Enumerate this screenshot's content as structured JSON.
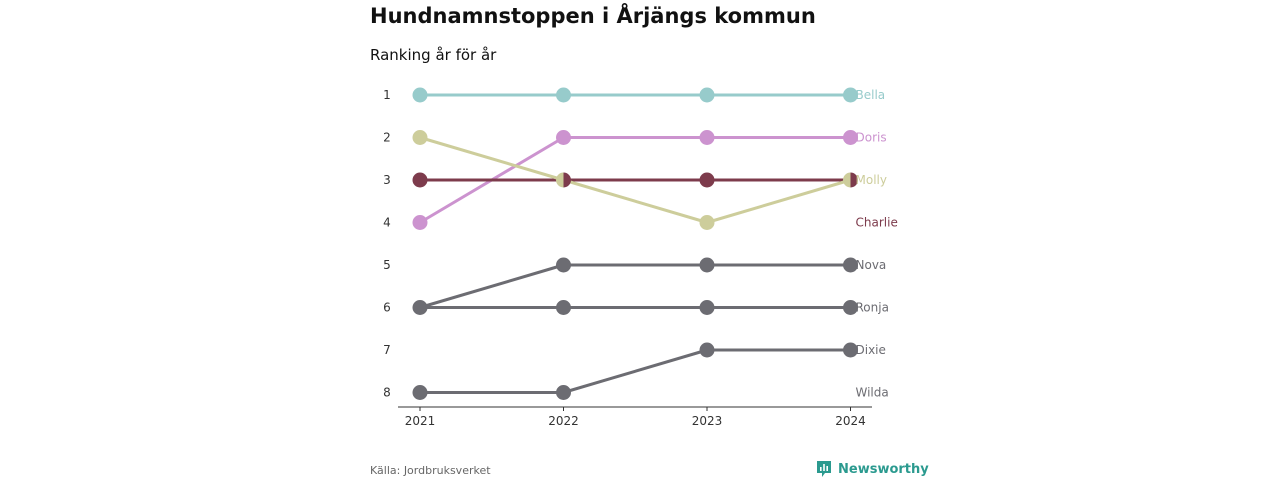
{
  "title": "Hundnamnstoppen i Årjängs kommun",
  "subtitle": "Ranking år för år",
  "source": "Källa: Jordbruksverket",
  "brand": "Newsworthy",
  "colors": {
    "brand": "#2b9a8f",
    "axis": "#333333",
    "tick_text": "#333333"
  },
  "chart_data": {
    "type": "line",
    "subtype": "bump",
    "x": [
      "2021",
      "2022",
      "2023",
      "2024"
    ],
    "y_ticks": [
      1,
      2,
      3,
      4,
      5,
      6,
      7,
      8
    ],
    "ylim": [
      1,
      8
    ],
    "y_reversed": true,
    "grid": false,
    "legend": "direct-labels-right",
    "series": [
      {
        "name": "Bella",
        "color": "#97cbcb",
        "values": [
          1,
          1,
          1,
          1
        ]
      },
      {
        "name": "Doris",
        "color": "#cc93cf",
        "values": [
          4,
          2,
          2,
          2
        ]
      },
      {
        "name": "Charlie",
        "color": "#7d3b4c",
        "values": [
          3,
          3,
          3,
          3
        ]
      },
      {
        "name": "Molly",
        "color": "#cdcd9b",
        "values": [
          2,
          3,
          4,
          3
        ]
      },
      {
        "name": "Nova",
        "color": "#6c6c72",
        "values": [
          6,
          5,
          5,
          5
        ]
      },
      {
        "name": "Ronja",
        "color": "#6c6c72",
        "values": [
          6,
          6,
          6,
          6
        ]
      },
      {
        "name": "Dixie",
        "color": "#6c6c72",
        "values": [
          8,
          8,
          7,
          7
        ]
      }
    ],
    "end_labels": [
      {
        "text": "Bella",
        "color": "#97cbcb",
        "rank": 1
      },
      {
        "text": "Doris",
        "color": "#cc93cf",
        "rank": 2
      },
      {
        "text": "Molly",
        "color": "#cdcd9b",
        "rank": 3
      },
      {
        "text": "Charlie",
        "color": "#7d3b4c",
        "rank": 4
      },
      {
        "text": "Nova",
        "color": "#6c6c72",
        "rank": 5
      },
      {
        "text": "Ronja",
        "color": "#6c6c72",
        "rank": 6
      },
      {
        "text": "Dixie",
        "color": "#6c6c72",
        "rank": 7
      },
      {
        "text": "Wilda",
        "color": "#6c6c72",
        "rank": 8
      }
    ]
  }
}
